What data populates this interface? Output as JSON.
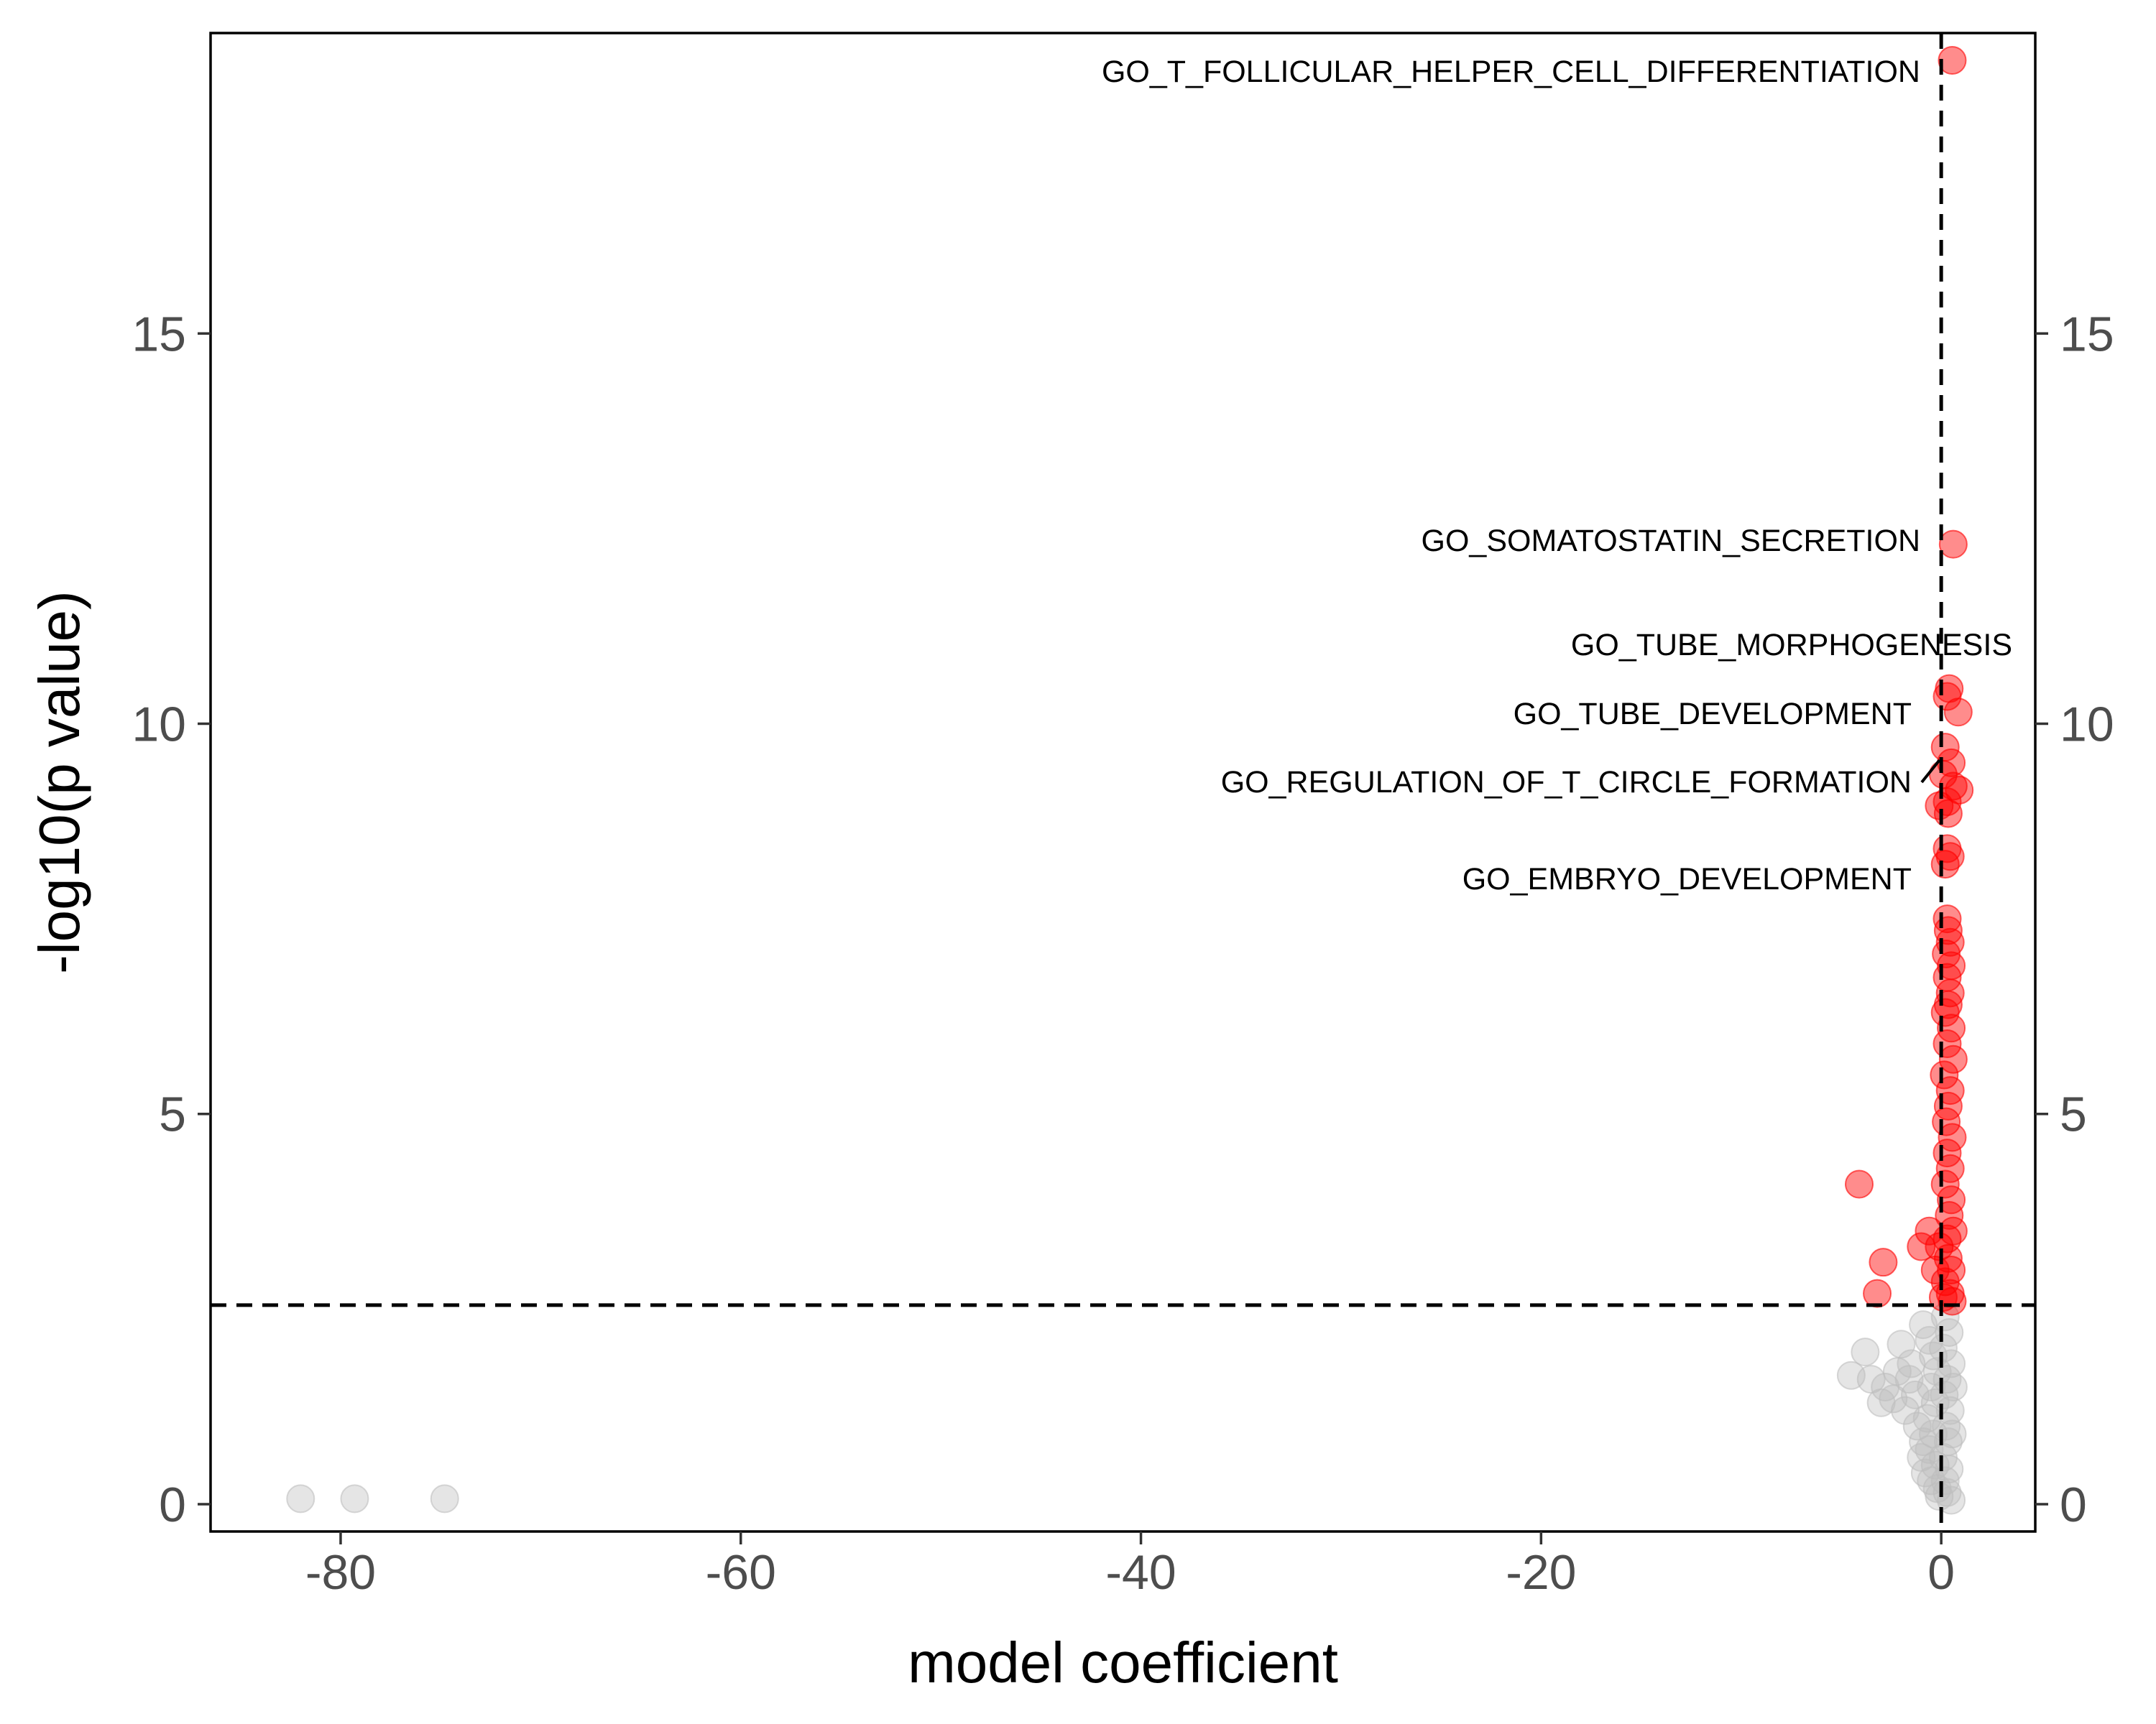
{
  "chart_data": {
    "type": "scatter",
    "title": "",
    "xlabel": "model coefficient",
    "ylabel": "-log10(p value)",
    "xlim": [
      -86.5,
      4.7
    ],
    "ylim": [
      -0.35,
      18.85
    ],
    "x_ticks": [
      -80,
      -60,
      -40,
      -20,
      0
    ],
    "y_ticks": [
      0,
      5,
      10,
      15
    ],
    "secondary_y_axis": true,
    "grid": false,
    "legend": "none",
    "thresholds": {
      "x": 0,
      "y": 2.55,
      "style": "dashed"
    },
    "colors": {
      "significant": "#ff0000",
      "not_significant": "#bebebe",
      "reference_line": "#000000"
    },
    "series": [
      {
        "points": [
          [
            0.55,
            18.5
          ],
          [
            0.6,
            12.3
          ],
          [
            0.4,
            10.45
          ],
          [
            0.3,
            10.35
          ],
          [
            0.85,
            10.15
          ],
          [
            0.2,
            9.7
          ],
          [
            0.5,
            9.5
          ],
          [
            0.1,
            9.35
          ],
          [
            0.6,
            9.2
          ],
          [
            0.9,
            9.15
          ],
          [
            0.3,
            9.0
          ],
          [
            -0.1,
            8.95
          ],
          [
            0.35,
            8.85
          ],
          [
            0.3,
            8.4
          ],
          [
            0.45,
            8.3
          ],
          [
            0.2,
            8.2
          ],
          [
            0.3,
            7.5
          ],
          [
            0.35,
            7.35
          ],
          [
            0.45,
            7.2
          ],
          [
            0.25,
            7.05
          ],
          [
            0.5,
            6.9
          ],
          [
            0.3,
            6.75
          ],
          [
            0.45,
            6.55
          ],
          [
            0.35,
            6.4
          ],
          [
            0.2,
            6.3
          ],
          [
            0.5,
            6.1
          ],
          [
            0.3,
            5.9
          ],
          [
            0.6,
            5.7
          ],
          [
            0.15,
            5.5
          ],
          [
            0.45,
            5.3
          ],
          [
            0.35,
            5.1
          ],
          [
            0.25,
            4.9
          ],
          [
            0.55,
            4.7
          ],
          [
            0.3,
            4.5
          ],
          [
            0.45,
            4.3
          ],
          [
            0.2,
            4.1
          ],
          [
            0.5,
            3.9
          ],
          [
            0.4,
            3.7
          ],
          [
            0.6,
            3.5
          ],
          [
            0.3,
            3.4
          ],
          [
            -0.1,
            3.3
          ],
          [
            0.35,
            3.15
          ],
          [
            0.5,
            3.0
          ],
          [
            0.2,
            2.85
          ],
          [
            0.45,
            2.7
          ],
          [
            0.1,
            2.65
          ],
          [
            0.55,
            2.6
          ],
          [
            -0.6,
            3.5
          ],
          [
            -1.0,
            3.3
          ],
          [
            -0.3,
            3.0
          ],
          [
            -4.1,
            4.1
          ],
          [
            -2.9,
            3.1
          ],
          [
            -3.2,
            2.7
          ]
        ]
      },
      {
        "points": [
          [
            -82.0,
            0.07
          ],
          [
            -79.3,
            0.07
          ],
          [
            -74.8,
            0.07
          ],
          [
            -3.8,
            1.95
          ],
          [
            -4.5,
            1.65
          ],
          [
            -3.5,
            1.6
          ],
          [
            -2.0,
            2.05
          ],
          [
            -1.5,
            1.8
          ],
          [
            -2.8,
            1.5
          ],
          [
            -2.4,
            1.35
          ],
          [
            -1.8,
            1.2
          ],
          [
            -3.0,
            1.3
          ],
          [
            -1.2,
            1.0
          ],
          [
            -0.9,
            2.3
          ],
          [
            -0.6,
            2.1
          ],
          [
            -0.4,
            1.9
          ],
          [
            0.2,
            2.4
          ],
          [
            0.4,
            2.2
          ],
          [
            0.1,
            2.0
          ],
          [
            0.5,
            1.8
          ],
          [
            0.3,
            1.6
          ],
          [
            0.15,
            1.4
          ],
          [
            0.45,
            1.2
          ],
          [
            0.25,
            1.0
          ],
          [
            0.35,
            0.8
          ],
          [
            0.1,
            0.6
          ],
          [
            0.4,
            0.45
          ],
          [
            0.2,
            0.3
          ],
          [
            0.3,
            0.15
          ],
          [
            -0.2,
            1.7
          ],
          [
            -0.5,
            1.5
          ],
          [
            -0.3,
            1.3
          ],
          [
            -0.7,
            1.1
          ],
          [
            -0.4,
            0.9
          ],
          [
            -0.9,
            0.8
          ],
          [
            -0.6,
            0.7
          ],
          [
            -1.0,
            0.6
          ],
          [
            -0.3,
            0.5
          ],
          [
            -0.8,
            0.4
          ],
          [
            -0.5,
            0.3
          ],
          [
            -0.2,
            0.2
          ],
          [
            -0.1,
            0.1
          ],
          [
            0.5,
            0.05
          ],
          [
            -1.3,
            1.4
          ],
          [
            -1.6,
            1.6
          ],
          [
            -2.2,
            1.7
          ],
          [
            0.6,
            1.5
          ],
          [
            0.55,
            0.9
          ]
        ]
      }
    ],
    "annotations": [
      {
        "text": "GO_T_FOLLICULAR_HELPER_CELL_DIFFERENTIATION",
        "x": 0.55,
        "y": 18.5
      },
      {
        "text": "GO_SOMATOSTATIN_SECRETION",
        "x": 0.6,
        "y": 12.3
      },
      {
        "text": "GO_TUBE_MORPHOGENESIS",
        "x": 0.4,
        "y": 10.45
      },
      {
        "text": "GO_TUBE_DEVELOPMENT",
        "x": 0.3,
        "y": 10.35
      },
      {
        "text": "GO_REGULATION_OF_T_CIRCLE_FORMATION",
        "x": 0.2,
        "y": 9.7
      },
      {
        "text": "GO_EMBRYO_DEVELOPMENT",
        "x": 0.3,
        "y": 8.4
      }
    ]
  }
}
